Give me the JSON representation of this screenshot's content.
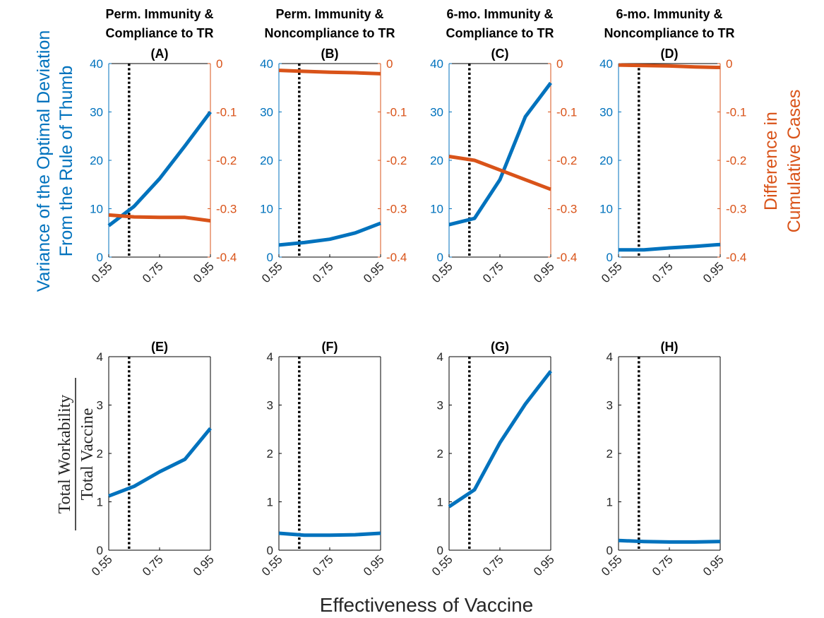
{
  "figure": {
    "xlabel": "Effectiveness of Vaccine",
    "top_left_ylabel_line1": "Variance of the Optimal Deviation",
    "top_left_ylabel_line2": "From the Rule of Thumb",
    "top_right_ylabel_line1": "Difference in",
    "top_right_ylabel_line2": "Cumulative Cases",
    "bottom_ylabel_numerator": "Total Workability",
    "bottom_ylabel_denominator": "Total Vaccine"
  },
  "colors": {
    "blue": "#0072BD",
    "orange": "#D95319",
    "dotted": "#000000"
  },
  "chart_data": [
    {
      "type": "line",
      "panel": "(A)",
      "title": "Perm. Immunity &",
      "subtitle": "Compliance to TR",
      "x": [
        0.55,
        0.65,
        0.75,
        0.85,
        0.95
      ],
      "xticks": [
        "0.55",
        "0.75",
        "0.95"
      ],
      "xlim": [
        0.55,
        0.95
      ],
      "ylim": [
        0,
        40
      ],
      "yticks": [
        "0",
        "10",
        "20",
        "30",
        "40"
      ],
      "ylim_right": [
        -0.4,
        0
      ],
      "yticks_right": [
        "0",
        "-0.1",
        "-0.2",
        "-0.3",
        "-0.4"
      ],
      "vline_x": 0.63,
      "series": [
        {
          "axis": "left",
          "color": "blue",
          "values": [
            6.5,
            10.5,
            16.2,
            23.0,
            30.0
          ]
        },
        {
          "axis": "right",
          "color": "orange",
          "values": [
            -0.313,
            -0.317,
            -0.318,
            -0.318,
            -0.325
          ]
        }
      ]
    },
    {
      "type": "line",
      "panel": "(B)",
      "title": "Perm. Immunity &",
      "subtitle": "Noncompliance to TR",
      "x": [
        0.55,
        0.65,
        0.75,
        0.85,
        0.95
      ],
      "xticks": [
        "0.55",
        "0.75",
        "0.95"
      ],
      "xlim": [
        0.55,
        0.95
      ],
      "ylim": [
        0,
        40
      ],
      "yticks": [
        "0",
        "10",
        "20",
        "30",
        "40"
      ],
      "ylim_right": [
        -0.4,
        0
      ],
      "yticks_right": [
        "0",
        "-0.1",
        "-0.2",
        "-0.3",
        "-0.4"
      ],
      "vline_x": 0.63,
      "series": [
        {
          "axis": "left",
          "color": "blue",
          "values": [
            2.5,
            3.0,
            3.7,
            5.0,
            7.0
          ]
        },
        {
          "axis": "right",
          "color": "orange",
          "values": [
            -0.014,
            -0.016,
            -0.018,
            -0.019,
            -0.021
          ]
        }
      ]
    },
    {
      "type": "line",
      "panel": "(C)",
      "title": "6-mo. Immunity &",
      "subtitle": "Compliance to TR",
      "x": [
        0.55,
        0.65,
        0.75,
        0.85,
        0.95
      ],
      "xticks": [
        "0.55",
        "0.75",
        "0.95"
      ],
      "xlim": [
        0.55,
        0.95
      ],
      "ylim": [
        0,
        40
      ],
      "yticks": [
        "0",
        "10",
        "20",
        "30",
        "40"
      ],
      "ylim_right": [
        -0.4,
        0
      ],
      "yticks_right": [
        "0",
        "-0.1",
        "-0.2",
        "-0.3",
        "-0.4"
      ],
      "vline_x": 0.63,
      "series": [
        {
          "axis": "left",
          "color": "blue",
          "values": [
            6.7,
            8.0,
            16.0,
            29.0,
            36.0
          ]
        },
        {
          "axis": "right",
          "color": "orange",
          "values": [
            -0.192,
            -0.2,
            -0.22,
            -0.24,
            -0.26
          ]
        }
      ]
    },
    {
      "type": "line",
      "panel": "(D)",
      "title": "6-mo. Immunity &",
      "subtitle": "Noncompliance to TR",
      "x": [
        0.55,
        0.65,
        0.75,
        0.85,
        0.95
      ],
      "xticks": [
        "0.55",
        "0.75",
        "0.95"
      ],
      "xlim": [
        0.55,
        0.95
      ],
      "ylim": [
        0,
        40
      ],
      "yticks": [
        "0",
        "10",
        "20",
        "30",
        "40"
      ],
      "ylim_right": [
        -0.4,
        0
      ],
      "yticks_right": [
        "0",
        "-0.1",
        "-0.2",
        "-0.3",
        "-0.4"
      ],
      "vline_x": 0.63,
      "series": [
        {
          "axis": "left",
          "color": "blue",
          "values": [
            1.5,
            1.5,
            1.9,
            2.2,
            2.6
          ]
        },
        {
          "axis": "right",
          "color": "orange",
          "values": [
            -0.003,
            -0.004,
            -0.005,
            -0.007,
            -0.008
          ]
        }
      ]
    },
    {
      "type": "line",
      "panel": "(E)",
      "x": [
        0.55,
        0.65,
        0.75,
        0.85,
        0.95
      ],
      "xticks": [
        "0.55",
        "0.75",
        "0.95"
      ],
      "xlim": [
        0.55,
        0.95
      ],
      "ylim": [
        0,
        4
      ],
      "yticks": [
        "0",
        "1",
        "2",
        "3",
        "4"
      ],
      "vline_x": 0.63,
      "series": [
        {
          "axis": "left",
          "color": "blue",
          "values": [
            1.12,
            1.32,
            1.62,
            1.88,
            2.52
          ]
        }
      ]
    },
    {
      "type": "line",
      "panel": "(F)",
      "x": [
        0.55,
        0.65,
        0.75,
        0.85,
        0.95
      ],
      "xticks": [
        "0.55",
        "0.75",
        "0.95"
      ],
      "xlim": [
        0.55,
        0.95
      ],
      "ylim": [
        0,
        4
      ],
      "yticks": [
        "0",
        "1",
        "2",
        "3",
        "4"
      ],
      "vline_x": 0.63,
      "series": [
        {
          "axis": "left",
          "color": "blue",
          "values": [
            0.35,
            0.31,
            0.31,
            0.32,
            0.35
          ]
        }
      ]
    },
    {
      "type": "line",
      "panel": "(G)",
      "x": [
        0.55,
        0.65,
        0.75,
        0.85,
        0.95
      ],
      "xticks": [
        "0.55",
        "0.75",
        "0.95"
      ],
      "xlim": [
        0.55,
        0.95
      ],
      "ylim": [
        0,
        4
      ],
      "yticks": [
        "0",
        "1",
        "2",
        "3",
        "4"
      ],
      "vline_x": 0.63,
      "series": [
        {
          "axis": "left",
          "color": "blue",
          "values": [
            0.9,
            1.25,
            2.22,
            3.02,
            3.7
          ]
        }
      ]
    },
    {
      "type": "line",
      "panel": "(H)",
      "x": [
        0.55,
        0.65,
        0.75,
        0.85,
        0.95
      ],
      "xticks": [
        "0.55",
        "0.75",
        "0.95"
      ],
      "xlim": [
        0.55,
        0.95
      ],
      "ylim": [
        0,
        4
      ],
      "yticks": [
        "0",
        "1",
        "2",
        "3",
        "4"
      ],
      "vline_x": 0.63,
      "series": [
        {
          "axis": "left",
          "color": "blue",
          "values": [
            0.2,
            0.18,
            0.17,
            0.17,
            0.18
          ]
        }
      ]
    }
  ]
}
